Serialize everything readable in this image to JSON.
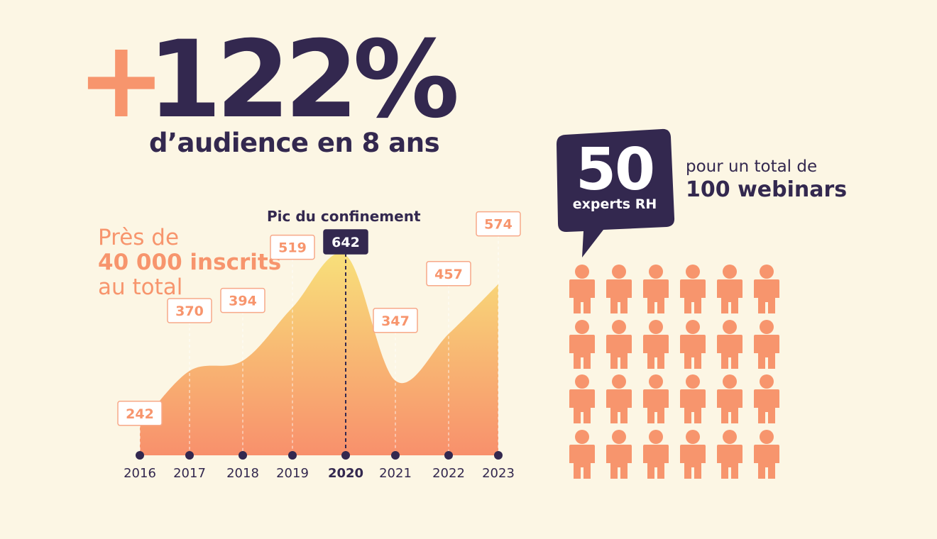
{
  "headline": {
    "plus": "+",
    "percent": "122%",
    "subtitle": "d’audience en 8 ans"
  },
  "total": {
    "line1": "Près de",
    "line2": "40 000 inscrits",
    "line3": "au total"
  },
  "peak_annotation": "Pic du confinement",
  "experts": {
    "count": "50",
    "label": "experts RH",
    "webinars_pre": "pour un total de",
    "webinars_main": "100 webinars",
    "people_icons": 24
  },
  "colors": {
    "background": "#fcf6e4",
    "navy": "#33284f",
    "orange": "#f7956d",
    "area_top": "#f8e07a",
    "area_bottom": "#f8906c"
  },
  "chart_data": {
    "type": "area",
    "x": [
      "2016",
      "2017",
      "2018",
      "2019",
      "2020",
      "2021",
      "2022",
      "2023"
    ],
    "values": [
      242,
      370,
      394,
      519,
      642,
      347,
      457,
      574
    ],
    "highlight": "2020",
    "title": "",
    "xlabel": "",
    "ylabel": ""
  }
}
